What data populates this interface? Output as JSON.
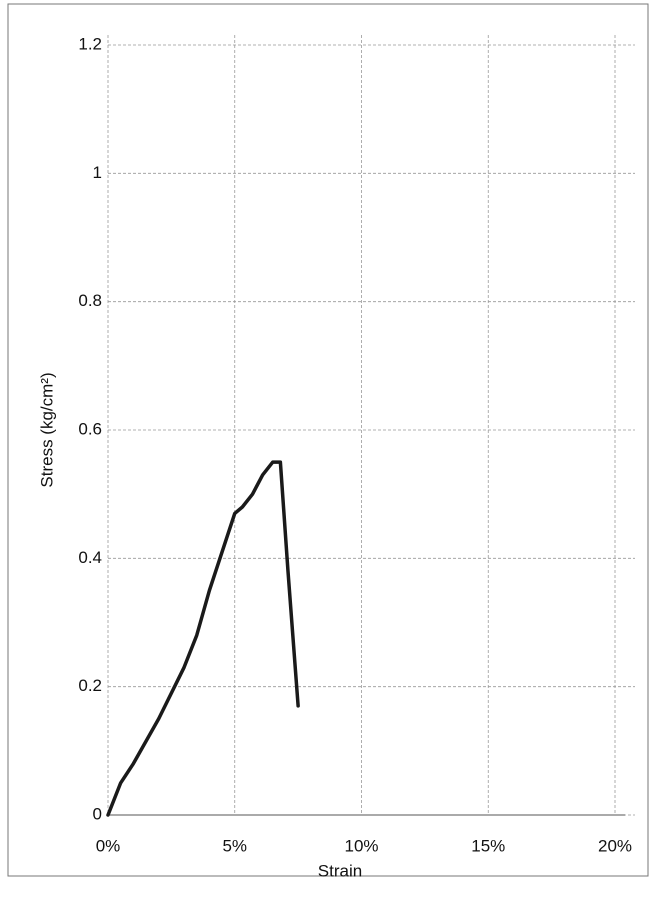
{
  "chart_data": {
    "type": "line",
    "x_label": "Strain",
    "y_label": "Stress (kg/cm²)",
    "x": [
      0,
      0.1,
      0.5,
      1,
      2,
      3,
      3.5,
      4,
      4.5,
      5,
      5.3,
      5.7,
      6.1,
      6.5,
      6.8,
      7.1,
      7.5
    ],
    "series": [
      {
        "color": "#1a1a1a",
        "values": [
          0,
          0.01,
          0.05,
          0.08,
          0.15,
          0.23,
          0.28,
          0.35,
          0.41,
          0.47,
          0.48,
          0.5,
          0.53,
          0.55,
          0.55,
          0.38,
          0.17
        ]
      }
    ],
    "xlim": [
      0,
      20
    ],
    "xticks": [
      {
        "value": 0,
        "label": "0%"
      },
      {
        "value": 5,
        "label": "5%"
      },
      {
        "value": 10,
        "label": "10%"
      },
      {
        "value": 15,
        "label": "15%"
      },
      {
        "value": 20,
        "label": "20%"
      }
    ],
    "ylim": [
      0,
      1.2
    ],
    "yticks": [
      0,
      0.2,
      0.4,
      0.6,
      0.8,
      1,
      1.2
    ],
    "grid": true
  }
}
